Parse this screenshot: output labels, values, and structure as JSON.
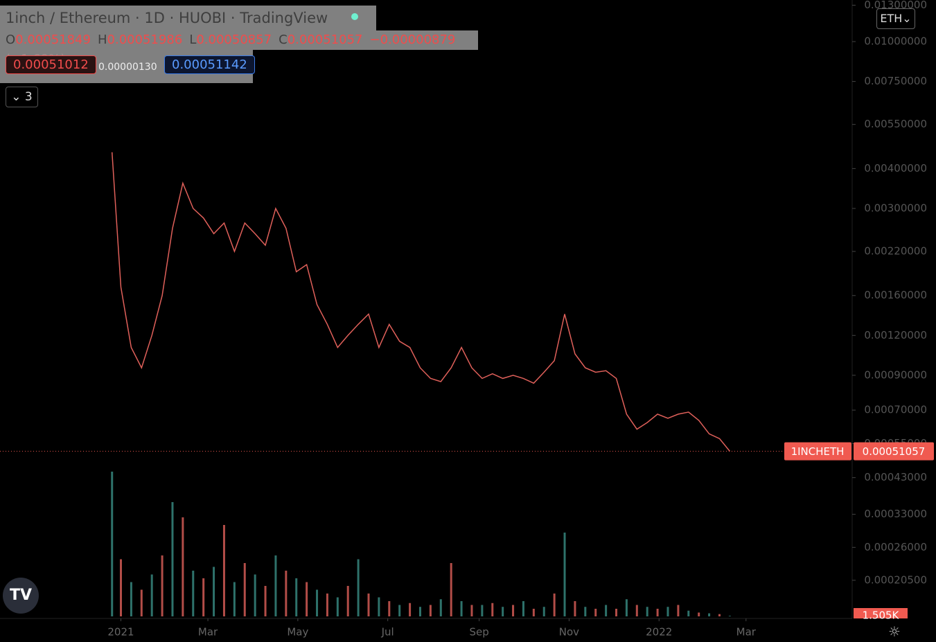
{
  "header": {
    "title": "1inch / Ethereum · 1D · HUOBI · TradingView",
    "ohlc": [
      {
        "key": "O",
        "value": "0.00051849"
      },
      {
        "key": "H",
        "value": "0.00051986"
      },
      {
        "key": "L",
        "value": "0.00050857"
      },
      {
        "key": "C",
        "value": "0.00051057"
      }
    ],
    "change": "−0.00000879 (−1.69%)",
    "bid": "0.00051012",
    "spread": "0.00000130",
    "ask": "0.00051142",
    "indicators": "3",
    "currency": "ETH"
  },
  "last_price": {
    "symbol": "1INCHETH",
    "value": "0.00051057"
  },
  "volume_label": "1.505K",
  "chart_data": {
    "type": "line",
    "log_scale": true,
    "color": "#e0605a",
    "volume_color": "#3a8f86",
    "ylim": [
      0.000158,
      0.0135
    ],
    "yticks": [
      {
        "value": 0.013,
        "label": "0.01300000"
      },
      {
        "value": 0.01,
        "label": "0.01000000"
      },
      {
        "value": 0.0075,
        "label": "0.00750000"
      },
      {
        "value": 0.0055,
        "label": "0.00550000"
      },
      {
        "value": 0.004,
        "label": "0.00400000"
      },
      {
        "value": 0.003,
        "label": "0.00300000"
      },
      {
        "value": 0.0022,
        "label": "0.00220000"
      },
      {
        "value": 0.0016,
        "label": "0.00160000"
      },
      {
        "value": 0.0012,
        "label": "0.00120000"
      },
      {
        "value": 0.0009,
        "label": "0.00090000"
      },
      {
        "value": 0.0007,
        "label": "0.00070000"
      },
      {
        "value": 0.00055,
        "label": "0.00055000"
      },
      {
        "value": 0.00043,
        "label": "0.00043000"
      },
      {
        "value": 0.00033,
        "label": "0.00033000"
      },
      {
        "value": 0.00026,
        "label": "0.00026000"
      },
      {
        "value": 0.000205,
        "label": "0.00020500"
      }
    ],
    "xlim": [
      -82,
      496
    ],
    "xticks": [
      {
        "value": 0,
        "label": "2021"
      },
      {
        "value": 59,
        "label": "Mar"
      },
      {
        "value": 120,
        "label": "May"
      },
      {
        "value": 181,
        "label": "Jul"
      },
      {
        "value": 243,
        "label": "Sep"
      },
      {
        "value": 304,
        "label": "Nov"
      },
      {
        "value": 365,
        "label": "2022"
      },
      {
        "value": 424,
        "label": "Mar"
      }
    ],
    "x": [
      -6,
      0,
      7,
      14,
      21,
      28,
      35,
      42,
      49,
      56,
      63,
      70,
      77,
      84,
      91,
      98,
      105,
      112,
      119,
      126,
      133,
      140,
      147,
      154,
      161,
      168,
      175,
      182,
      189,
      196,
      203,
      210,
      217,
      224,
      231,
      238,
      245,
      252,
      259,
      266,
      273,
      280,
      287,
      294,
      301,
      308,
      315,
      322,
      329,
      336,
      343,
      350,
      357,
      364,
      371,
      378,
      385,
      392,
      399,
      406,
      413
    ],
    "values": [
      0.0045,
      0.0017,
      0.0011,
      0.00095,
      0.0012,
      0.0016,
      0.0026,
      0.0036,
      0.003,
      0.0028,
      0.0025,
      0.0027,
      0.0022,
      0.0027,
      0.0025,
      0.0023,
      0.003,
      0.0026,
      0.0019,
      0.002,
      0.0015,
      0.0013,
      0.0011,
      0.0012,
      0.0013,
      0.0014,
      0.0011,
      0.0013,
      0.00115,
      0.0011,
      0.00095,
      0.00088,
      0.00086,
      0.00095,
      0.0011,
      0.00095,
      0.00088,
      0.00091,
      0.00088,
      0.0009,
      0.00088,
      0.00085,
      0.00092,
      0.001,
      0.0014,
      0.00105,
      0.00095,
      0.00092,
      0.00093,
      0.00088,
      0.00068,
      0.00061,
      0.00064,
      0.00068,
      0.00066,
      0.00068,
      0.00069,
      0.00065,
      0.00059,
      0.00057,
      0.00052
    ],
    "volume_ylim": [
      0,
      400
    ],
    "volume": [
      380,
      150,
      90,
      70,
      110,
      160,
      300,
      260,
      120,
      100,
      130,
      240,
      90,
      140,
      110,
      80,
      160,
      120,
      100,
      90,
      70,
      60,
      50,
      80,
      150,
      60,
      50,
      40,
      30,
      35,
      25,
      30,
      45,
      140,
      40,
      30,
      30,
      35,
      25,
      30,
      40,
      20,
      25,
      60,
      220,
      40,
      25,
      20,
      30,
      20,
      45,
      30,
      25,
      20,
      25,
      30,
      15,
      10,
      8,
      6,
      1.505
    ]
  }
}
